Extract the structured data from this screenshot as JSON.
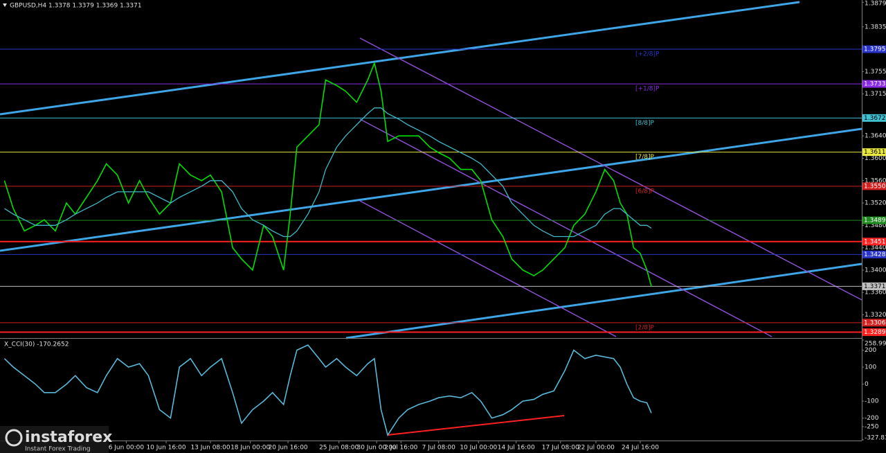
{
  "chart_data": [
    {
      "type": "line",
      "title": "GBPUSD,H4 1.3378 1.3379 1.3369 1.3371",
      "x": [
        2,
        6,
        11,
        16,
        20,
        25,
        30,
        34,
        39,
        44,
        48,
        53,
        58,
        63,
        67,
        72,
        77,
        81,
        86,
        91,
        95,
        100,
        105,
        109,
        114,
        119,
        123,
        128,
        131,
        134,
        139,
        144,
        147,
        152,
        156,
        161,
        166,
        169,
        172,
        175,
        180,
        184,
        189,
        194,
        198,
        203,
        208,
        213,
        217,
        222,
        227,
        231,
        236,
        241,
        245,
        250,
        255,
        259,
        264,
        269,
        273,
        277,
        280,
        283,
        286,
        289,
        292,
        294
      ],
      "series": [
        {
          "color": "#00e000",
          "values": [
            1.356,
            1.351,
            1.347,
            1.348,
            1.349,
            1.347,
            1.352,
            1.35,
            1.353,
            1.356,
            1.359,
            1.357,
            1.352,
            1.356,
            1.353,
            1.35,
            1.352,
            1.359,
            1.357,
            1.356,
            1.357,
            1.354,
            1.344,
            1.342,
            1.34,
            1.348,
            1.346,
            1.34,
            1.35,
            1.362,
            1.364,
            1.366,
            1.374,
            1.373,
            1.372,
            1.37,
            1.374,
            1.377,
            1.372,
            1.363,
            1.364,
            1.364,
            1.364,
            1.362,
            1.361,
            1.36,
            1.358,
            1.358,
            1.356,
            1.349,
            1.346,
            1.342,
            1.34,
            1.339,
            1.34,
            1.342,
            1.344,
            1.348,
            1.35,
            1.354,
            1.358,
            1.356,
            1.352,
            1.35,
            1.344,
            1.343,
            1.34,
            1.3371
          ]
        },
        {
          "color": "#3fb8c8",
          "values": [
            1.351,
            1.35,
            1.349,
            1.348,
            1.348,
            1.348,
            1.349,
            1.35,
            1.351,
            1.352,
            1.353,
            1.354,
            1.354,
            1.354,
            1.354,
            1.353,
            1.352,
            1.353,
            1.354,
            1.355,
            1.356,
            1.356,
            1.354,
            1.351,
            1.349,
            1.348,
            1.347,
            1.346,
            1.346,
            1.347,
            1.35,
            1.354,
            1.358,
            1.362,
            1.364,
            1.366,
            1.368,
            1.369,
            1.369,
            1.368,
            1.367,
            1.366,
            1.365,
            1.364,
            1.363,
            1.362,
            1.361,
            1.36,
            1.359,
            1.357,
            1.355,
            1.352,
            1.35,
            1.348,
            1.347,
            1.346,
            1.346,
            1.346,
            1.347,
            1.348,
            1.35,
            1.351,
            1.351,
            1.35,
            1.349,
            1.348,
            1.348,
            1.3475
          ]
        }
      ],
      "xlim": [
        0,
        389
      ],
      "ylim": [
        1.3281,
        1.3883
      ],
      "yticks": [
        1.3879,
        1.3835,
        1.3755,
        1.3715,
        {
          "value": 1.364,
          "label": "1.3640"
        },
        {
          "value": 1.36,
          "label": "1.3600"
        },
        {
          "value": 1.356,
          "label": "1.3560"
        },
        {
          "value": 1.352,
          "label": "1.3520"
        },
        {
          "value": 1.348,
          "label": "1.3480"
        },
        {
          "value": 1.344,
          "label": "1.3440"
        },
        {
          "value": 1.34,
          "label": "1.3400"
        },
        {
          "value": 1.336,
          "label": "1.3360"
        },
        {
          "value": 1.332,
          "label": "1.3320"
        }
      ],
      "grid": false,
      "levels": [
        {
          "value": 1.3795,
          "label": "1.3795",
          "color": "#2a34c8",
          "tag": "[+2/8]P"
        },
        {
          "value": 1.3733,
          "label": "1.3733",
          "color": "#8a2be2",
          "tag": "[+1/8]P"
        },
        {
          "value": 1.3672,
          "label": "1.3672",
          "color": "#40c0d0",
          "tag": "[8/8]P"
        },
        {
          "value": 1.3611,
          "label": "1.3611",
          "color": "#e8e840",
          "tag": "[7/8]P"
        },
        {
          "value": 1.355,
          "label": "1.3550",
          "color": "#d02020",
          "tag": "[6/8]P"
        },
        {
          "value": 1.3489,
          "label": "1.3489",
          "color": "#208a20"
        },
        {
          "value": 1.3451,
          "label": "1.3451",
          "color": "#ff2020"
        },
        {
          "value": 1.3428,
          "label": "1.3428",
          "color": "#2a34c8"
        },
        {
          "value": 1.3371,
          "label": "1.3371",
          "color": "#c0c0c0"
        },
        {
          "value": 1.3306,
          "label": "1.3306",
          "color": "#d02020",
          "tag": "[2/8]P"
        },
        {
          "value": 1.3289,
          "label": "1.3289",
          "color": "#ff2020"
        }
      ]
    },
    {
      "type": "line",
      "title": "X_CCI(30) -170.2652",
      "x": [
        2,
        6,
        11,
        16,
        20,
        25,
        30,
        34,
        39,
        44,
        48,
        53,
        58,
        63,
        67,
        72,
        77,
        81,
        86,
        91,
        95,
        100,
        105,
        109,
        114,
        119,
        123,
        128,
        131,
        134,
        139,
        144,
        147,
        152,
        156,
        161,
        166,
        169,
        172,
        175,
        180,
        184,
        189,
        194,
        198,
        203,
        208,
        213,
        217,
        222,
        227,
        231,
        236,
        241,
        245,
        250,
        255,
        259,
        264,
        269,
        273,
        277,
        280,
        283,
        286,
        289,
        292,
        294
      ],
      "series": [
        {
          "color": "#5ab8d8",
          "values": [
            150,
            100,
            50,
            0,
            -50,
            -50,
            0,
            50,
            -20,
            -50,
            50,
            150,
            100,
            120,
            50,
            -150,
            -200,
            100,
            150,
            50,
            100,
            150,
            -50,
            -230,
            -150,
            -100,
            -50,
            -120,
            50,
            200,
            230,
            150,
            100,
            150,
            100,
            50,
            120,
            150,
            -150,
            -300,
            -200,
            -150,
            -120,
            -100,
            -80,
            -70,
            -80,
            -50,
            -100,
            -200,
            -180,
            -150,
            -100,
            -90,
            -60,
            -40,
            80,
            200,
            150,
            170,
            160,
            150,
            100,
            0,
            -80,
            -100,
            -110,
            -170.2652
          ]
        }
      ],
      "xlim": [
        0,
        389
      ],
      "ylim": [
        -327.832,
        258.9969
      ],
      "yticks": [
        258.9969,
        200,
        100,
        0,
        -100,
        -200,
        -250,
        -327.832
      ],
      "xticks": [
        {
          "value": 57,
          "label": "6 Jun 00:00"
        },
        {
          "value": 75,
          "label": "10 Jun 16:00"
        },
        {
          "value": 95,
          "label": "13 Jun 08:00"
        },
        {
          "value": 113,
          "label": "18 Jun 00:00"
        },
        {
          "value": 130,
          "label": "20 Jun 16:00"
        },
        {
          "value": 153,
          "label": "25 Jun 08:00"
        },
        {
          "value": 170,
          "label": "30 Jun 00:00"
        },
        {
          "value": 181,
          "label": "2 Jul 16:00"
        },
        {
          "value": 198,
          "label": "7 Jul 08:00"
        },
        {
          "value": 216,
          "label": "10 Jul 00:00"
        },
        {
          "value": 233,
          "label": "14 Jul 16:00"
        },
        {
          "value": 253,
          "label": "17 Jul 08:00"
        },
        {
          "value": 269,
          "label": "22 Jul 00:00"
        },
        {
          "value": 289,
          "label": "24 Jul 16:00"
        }
      ],
      "grid": false
    }
  ],
  "watermark": {
    "brand": "instaforex",
    "tagline": "Instant Forex Trading"
  }
}
